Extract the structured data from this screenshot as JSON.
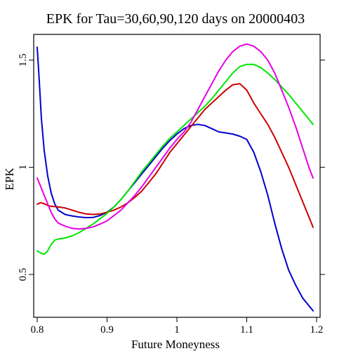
{
  "chart_data": {
    "type": "line",
    "title": "EPK for Tau=30,60,90,120 days on 20000403",
    "xlabel": "Future Moneyness",
    "ylabel": "EPK",
    "xlim": [
      0.795,
      1.205
    ],
    "ylim": [
      0.3,
      1.62
    ],
    "xticks": [
      0.8,
      0.9,
      1.0,
      1.1,
      1.2
    ],
    "xtick_labels": [
      "0.8",
      "0.9",
      "1",
      "1.1",
      "1.2"
    ],
    "yticks": [
      0.5,
      1.0,
      1.5
    ],
    "ytick_labels": [
      "0.5",
      "1",
      "1.5"
    ],
    "grid": false,
    "series": [
      {
        "color": "#0000cc",
        "x": [
          0.8,
          0.803,
          0.806,
          0.81,
          0.815,
          0.82,
          0.825,
          0.83,
          0.835,
          0.84,
          0.85,
          0.86,
          0.87,
          0.88,
          0.89,
          0.9,
          0.91,
          0.92,
          0.93,
          0.94,
          0.95,
          0.96,
          0.97,
          0.98,
          0.99,
          1.0,
          1.01,
          1.02,
          1.03,
          1.04,
          1.05,
          1.06,
          1.07,
          1.08,
          1.09,
          1.1,
          1.11,
          1.12,
          1.13,
          1.14,
          1.15,
          1.16,
          1.17,
          1.18,
          1.19,
          1.195
        ],
        "values": [
          1.56,
          1.4,
          1.23,
          1.08,
          0.96,
          0.88,
          0.83,
          0.8,
          0.79,
          0.78,
          0.773,
          0.768,
          0.765,
          0.766,
          0.775,
          0.79,
          0.815,
          0.85,
          0.89,
          0.93,
          0.97,
          1.01,
          1.05,
          1.09,
          1.125,
          1.155,
          1.18,
          1.195,
          1.2,
          1.195,
          1.18,
          1.165,
          1.16,
          1.155,
          1.145,
          1.13,
          1.07,
          0.98,
          0.87,
          0.74,
          0.62,
          0.52,
          0.45,
          0.39,
          0.35,
          0.33
        ]
      },
      {
        "color": "#cc0000",
        "x": [
          0.8,
          0.805,
          0.81,
          0.815,
          0.82,
          0.83,
          0.84,
          0.85,
          0.86,
          0.87,
          0.88,
          0.89,
          0.9,
          0.91,
          0.92,
          0.93,
          0.94,
          0.95,
          0.96,
          0.97,
          0.98,
          0.99,
          1.0,
          1.01,
          1.02,
          1.03,
          1.04,
          1.05,
          1.06,
          1.07,
          1.08,
          1.09,
          1.1,
          1.11,
          1.12,
          1.13,
          1.14,
          1.15,
          1.16,
          1.17,
          1.18,
          1.19,
          1.195
        ],
        "values": [
          0.828,
          0.835,
          0.83,
          0.822,
          0.818,
          0.815,
          0.81,
          0.8,
          0.79,
          0.782,
          0.78,
          0.782,
          0.79,
          0.8,
          0.815,
          0.835,
          0.86,
          0.89,
          0.93,
          0.97,
          1.02,
          1.07,
          1.11,
          1.15,
          1.19,
          1.23,
          1.27,
          1.3,
          1.33,
          1.36,
          1.385,
          1.39,
          1.36,
          1.3,
          1.25,
          1.2,
          1.14,
          1.07,
          1.0,
          0.92,
          0.84,
          0.76,
          0.72
        ]
      },
      {
        "color": "#00e600",
        "x": [
          0.8,
          0.805,
          0.81,
          0.815,
          0.82,
          0.825,
          0.83,
          0.84,
          0.85,
          0.86,
          0.87,
          0.88,
          0.89,
          0.9,
          0.91,
          0.92,
          0.93,
          0.94,
          0.95,
          0.96,
          0.97,
          0.98,
          0.99,
          1.0,
          1.01,
          1.02,
          1.03,
          1.04,
          1.05,
          1.06,
          1.07,
          1.08,
          1.09,
          1.1,
          1.11,
          1.12,
          1.13,
          1.14,
          1.15,
          1.16,
          1.17,
          1.18,
          1.19,
          1.195
        ],
        "values": [
          0.61,
          0.6,
          0.594,
          0.61,
          0.64,
          0.66,
          0.665,
          0.67,
          0.68,
          0.695,
          0.715,
          0.735,
          0.76,
          0.785,
          0.815,
          0.85,
          0.89,
          0.935,
          0.98,
          1.02,
          1.06,
          1.1,
          1.135,
          1.165,
          1.195,
          1.225,
          1.255,
          1.285,
          1.32,
          1.36,
          1.4,
          1.44,
          1.47,
          1.48,
          1.48,
          1.465,
          1.44,
          1.41,
          1.375,
          1.34,
          1.3,
          1.26,
          1.22,
          1.2
        ]
      },
      {
        "color": "#e600e6",
        "x": [
          0.8,
          0.805,
          0.81,
          0.815,
          0.82,
          0.825,
          0.83,
          0.84,
          0.85,
          0.86,
          0.87,
          0.88,
          0.89,
          0.9,
          0.91,
          0.92,
          0.93,
          0.94,
          0.95,
          0.96,
          0.97,
          0.98,
          0.99,
          1.0,
          1.01,
          1.02,
          1.03,
          1.04,
          1.05,
          1.06,
          1.07,
          1.08,
          1.09,
          1.1,
          1.11,
          1.12,
          1.13,
          1.14,
          1.15,
          1.16,
          1.17,
          1.18,
          1.19,
          1.195
        ],
        "values": [
          0.95,
          0.91,
          0.87,
          0.83,
          0.79,
          0.76,
          0.74,
          0.725,
          0.715,
          0.712,
          0.715,
          0.722,
          0.735,
          0.75,
          0.775,
          0.8,
          0.835,
          0.87,
          0.91,
          0.955,
          1.0,
          1.045,
          1.09,
          1.13,
          1.165,
          1.21,
          1.27,
          1.33,
          1.39,
          1.45,
          1.5,
          1.54,
          1.565,
          1.575,
          1.565,
          1.54,
          1.5,
          1.44,
          1.36,
          1.28,
          1.19,
          1.09,
          0.99,
          0.95
        ]
      }
    ]
  }
}
